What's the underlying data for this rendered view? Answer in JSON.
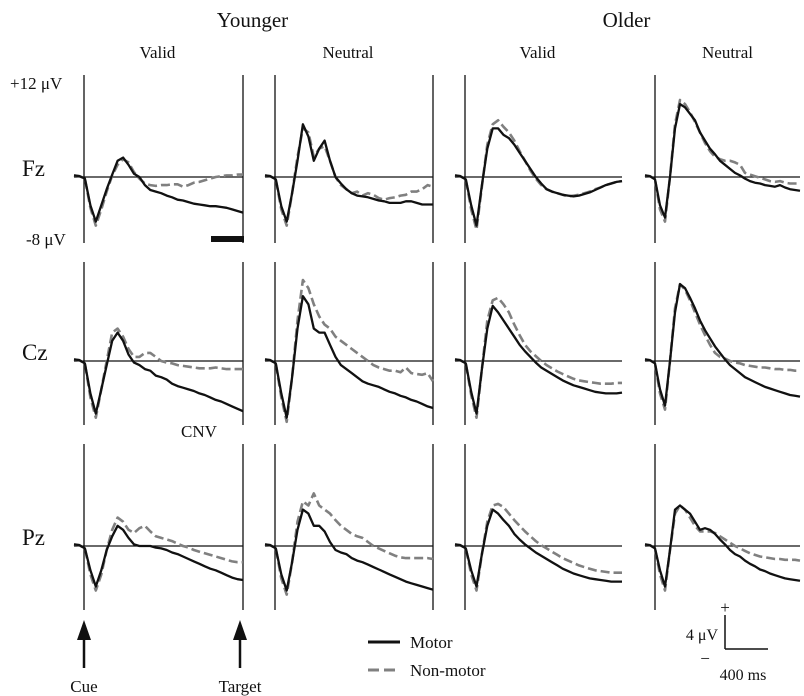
{
  "chart_data": {
    "type": "line",
    "groups": [
      {
        "label": "Younger",
        "conditions": [
          "Valid",
          "Neutral"
        ]
      },
      {
        "label": "Older",
        "conditions": [
          "Valid",
          "Neutral"
        ]
      }
    ],
    "electrodes": [
      "Fz",
      "Cz",
      "Pz"
    ],
    "y_top_label": "+12 μV",
    "y_bottom_label": "-8 μV",
    "ylim": [
      -8,
      12
    ],
    "scale_bar": {
      "plus": "+",
      "amplitude_label": "4 μV",
      "minus": "−",
      "time_label": "400 ms"
    },
    "legend": {
      "placement": "bottom-center",
      "motor_label": "Motor",
      "nonmotor_label": "Non-motor"
    },
    "annotations": {
      "cue": "Cue",
      "target": "Target",
      "cnv": "CNV"
    },
    "series_style": {
      "Motor": {
        "color": "#111111",
        "dash": "solid"
      },
      "Non-motor": {
        "color": "#808080",
        "dash": "dashed"
      }
    },
    "panels": [
      {
        "electrode": "Fz",
        "group": "Younger",
        "condition": "Valid",
        "Motor": [
          0.2,
          0.1,
          -0.2,
          -3.5,
          -5.5,
          -3.5,
          -1.5,
          0.3,
          2.0,
          2.4,
          1.5,
          0.4,
          0.0,
          -1.0,
          -1.6,
          -1.8,
          -2.0,
          -2.3,
          -2.5,
          -2.8,
          -2.9,
          -3.1,
          -3.3,
          -3.4,
          -3.5,
          -3.6,
          -3.6,
          -3.7,
          -3.8,
          -4.0,
          -4.2,
          -4.4
        ],
        "Non-motor": [
          0.2,
          0.1,
          -0.2,
          -3.8,
          -6.0,
          -4.0,
          -1.8,
          0.2,
          1.5,
          2.2,
          1.8,
          0.6,
          -0.2,
          -0.8,
          -1.0,
          -1.1,
          -1.0,
          -1.0,
          -0.9,
          -0.9,
          -1.2,
          -1.0,
          -0.7,
          -0.6,
          -0.4,
          -0.2,
          0.0,
          0.1,
          0.2,
          0.2,
          0.3,
          0.3
        ]
      },
      {
        "electrode": "Fz",
        "group": "Younger",
        "condition": "Neutral",
        "Motor": [
          0.2,
          0.1,
          -0.3,
          -3.6,
          -5.5,
          -2.0,
          2.0,
          6.5,
          5.0,
          2.0,
          3.5,
          4.5,
          2.0,
          0.0,
          -0.8,
          -1.5,
          -2.0,
          -2.3,
          -2.4,
          -2.5,
          -2.7,
          -2.9,
          -3.0,
          -3.2,
          -3.2,
          -3.2,
          -3.0,
          -3.0,
          -3.2,
          -3.4,
          -3.4,
          -3.4
        ],
        "Non-motor": [
          0.2,
          0.1,
          -0.3,
          -4.0,
          -6.0,
          -2.0,
          2.5,
          6.0,
          5.5,
          2.5,
          3.5,
          3.8,
          2.0,
          0.0,
          -1.0,
          -1.5,
          -2.0,
          -1.8,
          -2.3,
          -2.0,
          -2.2,
          -2.6,
          -2.8,
          -2.6,
          -2.5,
          -2.3,
          -2.2,
          -1.8,
          -1.8,
          -1.5,
          -1.0,
          -1.2
        ]
      },
      {
        "electrode": "Fz",
        "group": "Older",
        "condition": "Valid",
        "Motor": [
          0.2,
          0.1,
          -0.3,
          -3.5,
          -6.0,
          -1.0,
          3.5,
          6.0,
          6.0,
          5.2,
          4.8,
          4.0,
          3.0,
          2.0,
          1.0,
          0.0,
          -0.8,
          -1.5,
          -1.8,
          -2.0,
          -2.2,
          -2.3,
          -2.4,
          -2.3,
          -2.1,
          -1.9,
          -1.6,
          -1.3,
          -1.0,
          -0.8,
          -0.6,
          -0.5
        ],
        "Non-motor": [
          0.2,
          0.1,
          -0.3,
          -4.0,
          -6.5,
          -1.2,
          4.0,
          6.5,
          7.0,
          6.2,
          5.5,
          4.5,
          3.2,
          2.0,
          0.8,
          -0.2,
          -1.0,
          -1.5,
          -1.8,
          -2.0,
          -2.2,
          -2.4,
          -2.3,
          -2.2,
          -2.0,
          -1.8,
          -1.5,
          -1.3,
          -1.0,
          -0.8,
          -0.6,
          -0.5
        ]
      },
      {
        "electrode": "Fz",
        "group": "Older",
        "condition": "Neutral",
        "Motor": [
          0.2,
          0.1,
          -0.3,
          -3.5,
          -5.0,
          0.0,
          6.0,
          9.0,
          8.6,
          7.8,
          7.0,
          5.5,
          4.5,
          3.5,
          2.8,
          2.0,
          1.5,
          1.0,
          0.5,
          0.2,
          -0.2,
          -0.5,
          -0.7,
          -0.8,
          -1.0,
          -1.1,
          -1.2,
          -1.0,
          -1.3,
          -1.5,
          -1.6,
          -1.7
        ],
        "Non-motor": [
          0.2,
          0.1,
          -0.3,
          -4.0,
          -5.5,
          0.0,
          6.5,
          9.5,
          9.0,
          8.0,
          6.8,
          5.5,
          4.2,
          3.2,
          2.5,
          2.2,
          2.0,
          2.0,
          1.8,
          1.5,
          0.5,
          0.3,
          0.1,
          -0.1,
          -0.3,
          -0.5,
          -0.6,
          -0.5,
          -0.7,
          -0.8,
          -0.8,
          -0.8
        ]
      },
      {
        "electrode": "Cz",
        "group": "Younger",
        "condition": "Valid",
        "Motor": [
          0.2,
          0.1,
          -0.3,
          -4.0,
          -6.5,
          -3.5,
          -0.5,
          2.5,
          3.5,
          2.5,
          0.8,
          -0.2,
          -0.5,
          -1.0,
          -1.2,
          -1.8,
          -2.0,
          -2.3,
          -2.8,
          -3.1,
          -3.3,
          -3.5,
          -3.7,
          -4.0,
          -4.2,
          -4.5,
          -4.8,
          -5.0,
          -5.3,
          -5.6,
          -5.9,
          -6.2
        ],
        "Non-motor": [
          0.2,
          0.1,
          -0.3,
          -4.5,
          -7.0,
          -3.5,
          0.0,
          3.5,
          4.0,
          3.0,
          1.5,
          0.5,
          0.5,
          1.0,
          1.0,
          0.5,
          0.0,
          -0.2,
          -0.3,
          -0.5,
          -0.6,
          -0.7,
          -0.8,
          -0.9,
          -0.9,
          -0.9,
          -0.8,
          -0.9,
          -1.0,
          -1.0,
          -1.0,
          -1.0
        ]
      },
      {
        "electrode": "Cz",
        "group": "Younger",
        "condition": "Neutral",
        "Motor": [
          0.2,
          0.1,
          -0.3,
          -4.0,
          -7.0,
          -2.0,
          4.0,
          8.0,
          7.0,
          4.0,
          3.5,
          3.5,
          2.0,
          0.5,
          -0.5,
          -1.0,
          -1.5,
          -2.0,
          -2.5,
          -2.8,
          -3.0,
          -3.2,
          -3.5,
          -3.8,
          -4.0,
          -4.3,
          -4.5,
          -4.8,
          -5.0,
          -5.3,
          -5.6,
          -5.8
        ],
        "Non-motor": [
          0.2,
          0.1,
          -0.3,
          -4.5,
          -7.5,
          -2.0,
          5.0,
          10.0,
          9.0,
          7.0,
          5.5,
          4.5,
          4.0,
          3.0,
          2.5,
          2.0,
          1.5,
          1.0,
          0.5,
          0.0,
          -0.5,
          -0.8,
          -1.0,
          -1.2,
          -1.2,
          -1.4,
          -0.8,
          -1.5,
          -1.6,
          -1.7,
          -1.5,
          -2.5
        ]
      },
      {
        "electrode": "Cz",
        "group": "Older",
        "condition": "Valid",
        "Motor": [
          0.2,
          0.1,
          -0.3,
          -3.8,
          -6.5,
          -1.0,
          4.0,
          6.8,
          6.0,
          5.0,
          4.0,
          3.0,
          2.0,
          1.2,
          0.5,
          -0.2,
          -0.8,
          -1.2,
          -1.6,
          -2.0,
          -2.4,
          -2.7,
          -3.0,
          -3.2,
          -3.4,
          -3.6,
          -3.8,
          -3.9,
          -4.0,
          -4.0,
          -4.0,
          -3.9
        ],
        "Non-motor": [
          0.2,
          0.1,
          -0.3,
          -4.2,
          -7.0,
          -1.0,
          5.0,
          7.5,
          7.8,
          7.0,
          6.0,
          4.5,
          3.2,
          2.0,
          1.2,
          0.6,
          0.0,
          -0.5,
          -0.9,
          -1.3,
          -1.6,
          -1.9,
          -2.2,
          -2.4,
          -2.5,
          -2.6,
          -2.7,
          -2.8,
          -2.8,
          -2.8,
          -2.7,
          -2.7
        ]
      },
      {
        "electrode": "Cz",
        "group": "Older",
        "condition": "Neutral",
        "Motor": [
          0.2,
          0.1,
          -0.3,
          -3.5,
          -5.5,
          0.0,
          6.0,
          9.5,
          9.0,
          7.8,
          6.5,
          5.0,
          3.8,
          2.8,
          1.8,
          1.0,
          0.2,
          -0.5,
          -1.0,
          -1.5,
          -2.0,
          -2.3,
          -2.6,
          -2.9,
          -3.2,
          -3.4,
          -3.6,
          -3.8,
          -4.0,
          -4.2,
          -4.3,
          -4.4
        ],
        "Non-motor": [
          0.2,
          0.1,
          -0.3,
          -4.0,
          -6.0,
          0.0,
          6.5,
          9.5,
          8.8,
          7.5,
          6.0,
          4.5,
          3.2,
          2.0,
          1.0,
          0.5,
          0.3,
          0.0,
          -0.2,
          -0.3,
          -0.5,
          -0.6,
          -0.7,
          -0.8,
          -0.8,
          -0.9,
          -1.0,
          -1.0,
          -1.1,
          -1.1,
          -1.2,
          -1.2
        ]
      },
      {
        "electrode": "Pz",
        "group": "Younger",
        "condition": "Valid",
        "Motor": [
          0.2,
          0.1,
          -0.3,
          -3.0,
          -5.0,
          -3.0,
          -0.5,
          1.2,
          2.5,
          2.0,
          1.0,
          0.2,
          0.0,
          0.0,
          0.0,
          -0.2,
          -0.3,
          -0.5,
          -0.8,
          -1.0,
          -1.3,
          -1.6,
          -1.9,
          -2.2,
          -2.5,
          -2.8,
          -3.0,
          -3.3,
          -3.6,
          -3.9,
          -4.1,
          -4.2
        ],
        "Non-motor": [
          0.2,
          0.1,
          -0.3,
          -3.5,
          -5.5,
          -3.5,
          -0.5,
          2.0,
          3.5,
          3.0,
          2.0,
          1.6,
          2.2,
          2.5,
          1.8,
          1.2,
          1.0,
          0.8,
          0.6,
          0.3,
          0.0,
          -0.2,
          -0.5,
          -0.7,
          -0.9,
          -1.1,
          -1.3,
          -1.5,
          -1.7,
          -1.9,
          -2.0,
          -2.0
        ]
      },
      {
        "electrode": "Pz",
        "group": "Younger",
        "condition": "Neutral",
        "Motor": [
          0.2,
          0.1,
          -0.3,
          -3.5,
          -5.5,
          -2.0,
          2.0,
          4.5,
          4.0,
          2.5,
          2.5,
          1.8,
          0.5,
          -0.5,
          -0.8,
          -1.0,
          -1.5,
          -1.8,
          -2.0,
          -2.3,
          -2.6,
          -2.9,
          -3.2,
          -3.5,
          -3.8,
          -4.1,
          -4.4,
          -4.6,
          -4.8,
          -5.0,
          -5.2,
          -5.4
        ],
        "Non-motor": [
          0.2,
          0.1,
          -0.3,
          -4.0,
          -6.0,
          -2.0,
          3.0,
          5.5,
          5.0,
          6.5,
          5.0,
          4.5,
          4.0,
          3.2,
          2.5,
          2.0,
          1.5,
          1.2,
          1.0,
          0.5,
          0.0,
          -0.3,
          -0.6,
          -0.9,
          -1.2,
          -1.4,
          -1.5,
          -1.5,
          -1.5,
          -1.5,
          -1.5,
          -1.6
        ]
      },
      {
        "electrode": "Pz",
        "group": "Older",
        "condition": "Valid",
        "Motor": [
          0.2,
          0.1,
          -0.3,
          -3.0,
          -5.0,
          -1.0,
          2.5,
          4.5,
          4.0,
          3.2,
          2.5,
          1.5,
          0.8,
          0.2,
          -0.3,
          -0.8,
          -1.2,
          -1.6,
          -2.0,
          -2.4,
          -2.8,
          -3.1,
          -3.4,
          -3.6,
          -3.8,
          -4.0,
          -4.1,
          -4.2,
          -4.3,
          -4.4,
          -4.4,
          -4.4
        ],
        "Non-motor": [
          0.2,
          0.1,
          -0.3,
          -3.5,
          -5.5,
          -1.0,
          3.0,
          5.0,
          5.2,
          4.8,
          4.0,
          3.2,
          2.5,
          1.8,
          1.2,
          0.6,
          0.1,
          -0.3,
          -0.7,
          -1.1,
          -1.5,
          -1.8,
          -2.1,
          -2.4,
          -2.6,
          -2.8,
          -3.0,
          -3.1,
          -3.2,
          -3.3,
          -3.3,
          -3.3
        ]
      },
      {
        "electrode": "Pz",
        "group": "Older",
        "condition": "Neutral",
        "Motor": [
          0.2,
          0.1,
          -0.3,
          -3.0,
          -5.0,
          -0.5,
          4.5,
          5.0,
          4.5,
          4.0,
          3.0,
          2.0,
          2.2,
          2.0,
          1.5,
          0.8,
          0.2,
          -0.5,
          -1.0,
          -1.3,
          -1.8,
          -2.2,
          -2.5,
          -2.9,
          -3.1,
          -3.4,
          -3.6,
          -3.8,
          -4.0,
          -4.1,
          -4.2,
          -4.3
        ],
        "Non-motor": [
          0.2,
          0.1,
          -0.3,
          -3.5,
          -5.5,
          -0.5,
          4.0,
          5.0,
          4.5,
          3.5,
          2.5,
          1.8,
          1.8,
          1.8,
          1.6,
          1.2,
          0.8,
          0.4,
          0.0,
          -0.3,
          -0.6,
          -0.9,
          -1.1,
          -1.3,
          -1.4,
          -1.5,
          -1.6,
          -1.6,
          -1.7,
          -1.7,
          -1.7,
          -1.8
        ]
      }
    ]
  }
}
